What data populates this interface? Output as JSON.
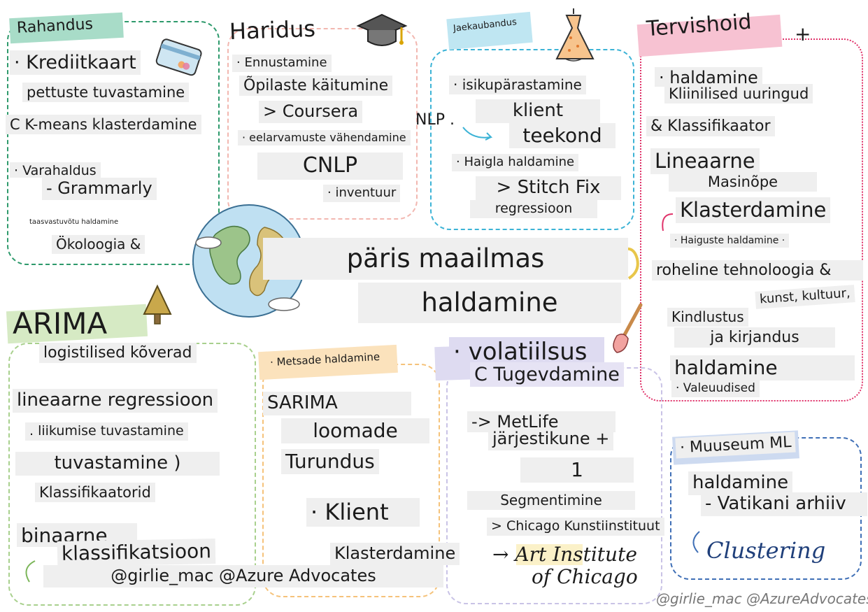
{
  "center": {
    "title_line1": "päris maailmas",
    "title_line2": "haldamine"
  },
  "finance": {
    "header": "Rahandus",
    "lines": [
      "· Krediitkaart",
      "pettuste tuvastamine",
      "C K-means klasterdamine",
      "· Varahaldus",
      "- Grammarly",
      "taasvastuvõtu haldamine",
      "Ökoloogia &"
    ]
  },
  "education": {
    "header": "Haridus",
    "lines": [
      "· Ennustamine",
      "Õpilaste käitumine",
      "> Coursera",
      "· eelarvamuste vähendamine",
      "CNLP",
      "· inventuur"
    ]
  },
  "retail": {
    "header": "Jaekaubandus",
    "lines": [
      "· isikupärastamine",
      "NLP .",
      "klient",
      "teekond",
      "· Haigla haldamine",
      "> Stitch Fix",
      "regressioon"
    ]
  },
  "health": {
    "header": "Tervishoid",
    "plus": "+",
    "lines": [
      "· haldamine",
      "Kliinilised uuringud",
      "& Klassifikaator",
      "Lineaarne",
      "Masinõpe",
      "Klasterdamine",
      "· Haiguste haldamine ·",
      "roheline tehnoloogia &",
      "kunst, kultuur,",
      "Kindlustus",
      "ja kirjandus",
      "haldamine",
      "· Valeuudised"
    ]
  },
  "arima": {
    "header": "ARIMA",
    "lines": [
      "logistilised kõverad",
      "lineaarne regressioon",
      ". liikumise tuvastamine",
      "tuvastamine )",
      "Klassifikaatorid",
      "binaarne",
      "klassifikatsioon",
      "@girlie_mac @Azure Advocates"
    ]
  },
  "forest": {
    "lines": [
      "· Metsade haldamine",
      "SARIMA",
      "loomade",
      "Turundus",
      "· Klient",
      "Klasterdamine"
    ]
  },
  "volatility": {
    "lines": [
      "· volatiilsus",
      "C Tugevdamine",
      "-> MetLife",
      "järjestikune +",
      "1",
      "Segmentimine",
      "> Chicago Kunstiinstituut",
      "→ Art Institute",
      "of Chicago"
    ]
  },
  "museum": {
    "lines": [
      "· Muuseum ML",
      "haldamine",
      "- Vatikani arhiiv",
      "Clustering"
    ]
  },
  "credit": "@girlie_mac @AzureAdvocates",
  "colors": {
    "finance": "#2e9a6c",
    "education": "#f2b7b0",
    "retail": "#3cb3d6",
    "health": "#e0336a",
    "arima": "#a8d08d",
    "forest": "#f5c27a",
    "volatility": "#c9c3e6",
    "museum": "#3f6fb6",
    "label_bg": "#efefef"
  },
  "icons": [
    "credit-card-icon",
    "graduation-cap-icon",
    "dress-icon",
    "globe-icon",
    "tree-icon",
    "paintbrush-icon"
  ]
}
